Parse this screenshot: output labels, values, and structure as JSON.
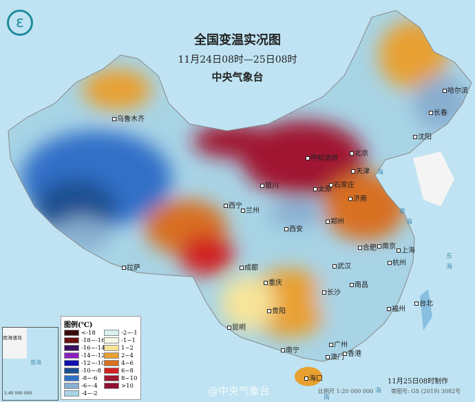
{
  "title": "全国变温实况图",
  "subtitle": "11月24日08时—25日08时",
  "agency": "中央气象台",
  "logo_icon": "cma-logo-icon",
  "cities": [
    "乌鲁木齐",
    "哈尔滨",
    "长春",
    "沈阳",
    "北京",
    "天津",
    "呼和浩特",
    "银川",
    "太原",
    "石家庄",
    "济南",
    "西宁",
    "兰州",
    "郑州",
    "西安",
    "合肥",
    "南京",
    "上海",
    "杭州",
    "武汉",
    "成都",
    "拉萨",
    "重庆",
    "长沙",
    "南昌",
    "福州",
    "台北",
    "贵阳",
    "昆明",
    "南宁",
    "广州",
    "澳门",
    "香港",
    "海口"
  ],
  "seas": [
    "海",
    "黄",
    "海",
    "东",
    "海",
    "南",
    "海"
  ],
  "legend": {
    "title": "图例(℃)",
    "items": [
      {
        "label": "<-18",
        "color": "#3a0a0a"
      },
      {
        "label": "-18~-16",
        "color": "#6a1010"
      },
      {
        "label": "-16~-14",
        "color": "#3a1060"
      },
      {
        "label": "-14~-12",
        "color": "#8a20c0"
      },
      {
        "label": "-12~-10",
        "color": "#1010b0"
      },
      {
        "label": "-10~-8",
        "color": "#1e4f90"
      },
      {
        "label": "-8~-6",
        "color": "#3070c8"
      },
      {
        "label": "-6~-4",
        "color": "#88aed0"
      },
      {
        "label": "-4~-2",
        "color": "#a8d4e6"
      },
      {
        "label": "-2~-1",
        "color": "#d8f2ee"
      },
      {
        "label": "-1~1",
        "color": "#f4f8e4"
      },
      {
        "label": "1~2",
        "color": "#f6e49a"
      },
      {
        "label": "2~4",
        "color": "#e8a030"
      },
      {
        "label": "4~6",
        "color": "#d87020"
      },
      {
        "label": "6~8",
        "color": "#d02020"
      },
      {
        "label": "8~10",
        "color": "#a01830"
      },
      {
        "label": ">10",
        "color": "#901030"
      }
    ]
  },
  "inset": {
    "label": "南海诸岛",
    "sea": "南海",
    "scale": "1:40 000 000"
  },
  "made": "11月25日08时制作",
  "scale": "比例尺 1:20 000 000",
  "map_no": "审图号: GS (2019) 3082号",
  "watermark": "@中央气象台"
}
